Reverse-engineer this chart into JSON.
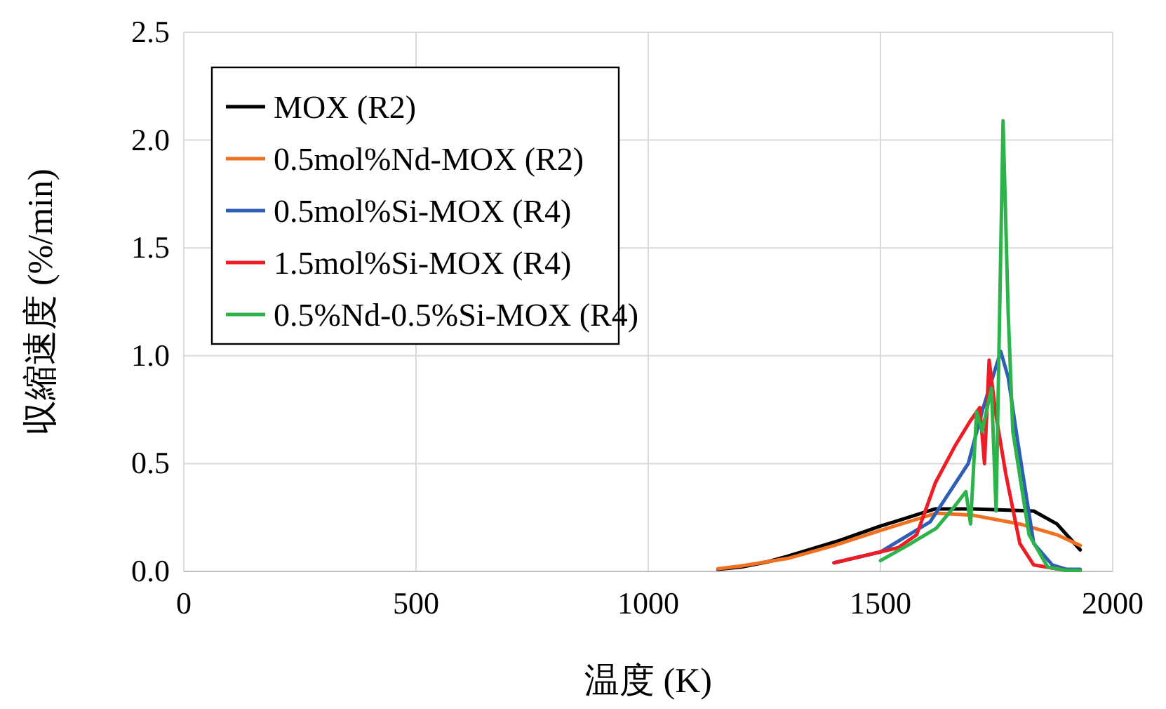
{
  "chart_data": {
    "type": "line",
    "xlabel": "温度 (K)",
    "ylabel": "収縮速度 (%/min)",
    "xlim": [
      0,
      2000
    ],
    "xticks": [
      0,
      500,
      1000,
      1500,
      2000
    ],
    "ylim": [
      0,
      2.5
    ],
    "yticks": [
      {
        "value": 0,
        "label": "0.0"
      },
      {
        "value": 0.5,
        "label": "0.5"
      },
      {
        "value": 1,
        "label": "1.0"
      },
      {
        "value": 1.5,
        "label": "1.5"
      },
      {
        "value": 2,
        "label": "2.0"
      },
      {
        "value": 2.5,
        "label": "2.5"
      }
    ],
    "grid": true,
    "legend": "top left",
    "marker": "none",
    "line_style": "solid",
    "series": [
      {
        "name": "MOX (R2)",
        "color": "#000000",
        "x": [
          1150,
          1200,
          1256,
          1300,
          1407,
          1500,
          1618,
          1700,
          1830,
          1880,
          1930
        ],
        "values": [
          0.01,
          0.02,
          0.044,
          0.07,
          0.14,
          0.21,
          0.29,
          0.29,
          0.28,
          0.22,
          0.1
        ]
      },
      {
        "name": "0.5mol%Nd-MOX (R2)",
        "color": "#f07020",
        "x": [
          1150,
          1200,
          1300,
          1400,
          1500,
          1620,
          1700,
          1800,
          1880,
          1930
        ],
        "values": [
          0.012,
          0.025,
          0.06,
          0.12,
          0.19,
          0.27,
          0.26,
          0.22,
          0.17,
          0.12
        ]
      },
      {
        "name": "0.5mol%Si-MOX (R4)",
        "color": "#2e5fb5",
        "x": [
          1400,
          1500,
          1607,
          1689,
          1720,
          1759,
          1775,
          1795,
          1830,
          1870,
          1900,
          1930
        ],
        "values": [
          0.04,
          0.09,
          0.23,
          0.5,
          0.75,
          1.02,
          0.9,
          0.61,
          0.13,
          0.03,
          0.01,
          0.01
        ]
      },
      {
        "name": "1.5mol%Si-MOX (R4)",
        "color": "#ee1c25",
        "x": [
          1400,
          1538,
          1578,
          1618,
          1660,
          1694,
          1714,
          1724,
          1734,
          1749,
          1770,
          1800,
          1830,
          1900,
          1930
        ],
        "values": [
          0.04,
          0.11,
          0.17,
          0.41,
          0.58,
          0.7,
          0.76,
          0.5,
          0.98,
          0.72,
          0.45,
          0.13,
          0.03,
          0.005,
          0.005
        ]
      },
      {
        "name": "0.5%Nd-0.5%Si-MOX (R4)",
        "color": "#2cb34a",
        "x": [
          1500,
          1558,
          1620,
          1659,
          1684,
          1694,
          1707,
          1719,
          1739,
          1749,
          1764,
          1775,
          1785,
          1820,
          1860,
          1900,
          1930
        ],
        "values": [
          0.05,
          0.12,
          0.2,
          0.3,
          0.37,
          0.22,
          0.74,
          0.65,
          0.85,
          0.28,
          2.09,
          1.2,
          0.65,
          0.17,
          0.02,
          0.005,
          0.005
        ]
      }
    ]
  }
}
